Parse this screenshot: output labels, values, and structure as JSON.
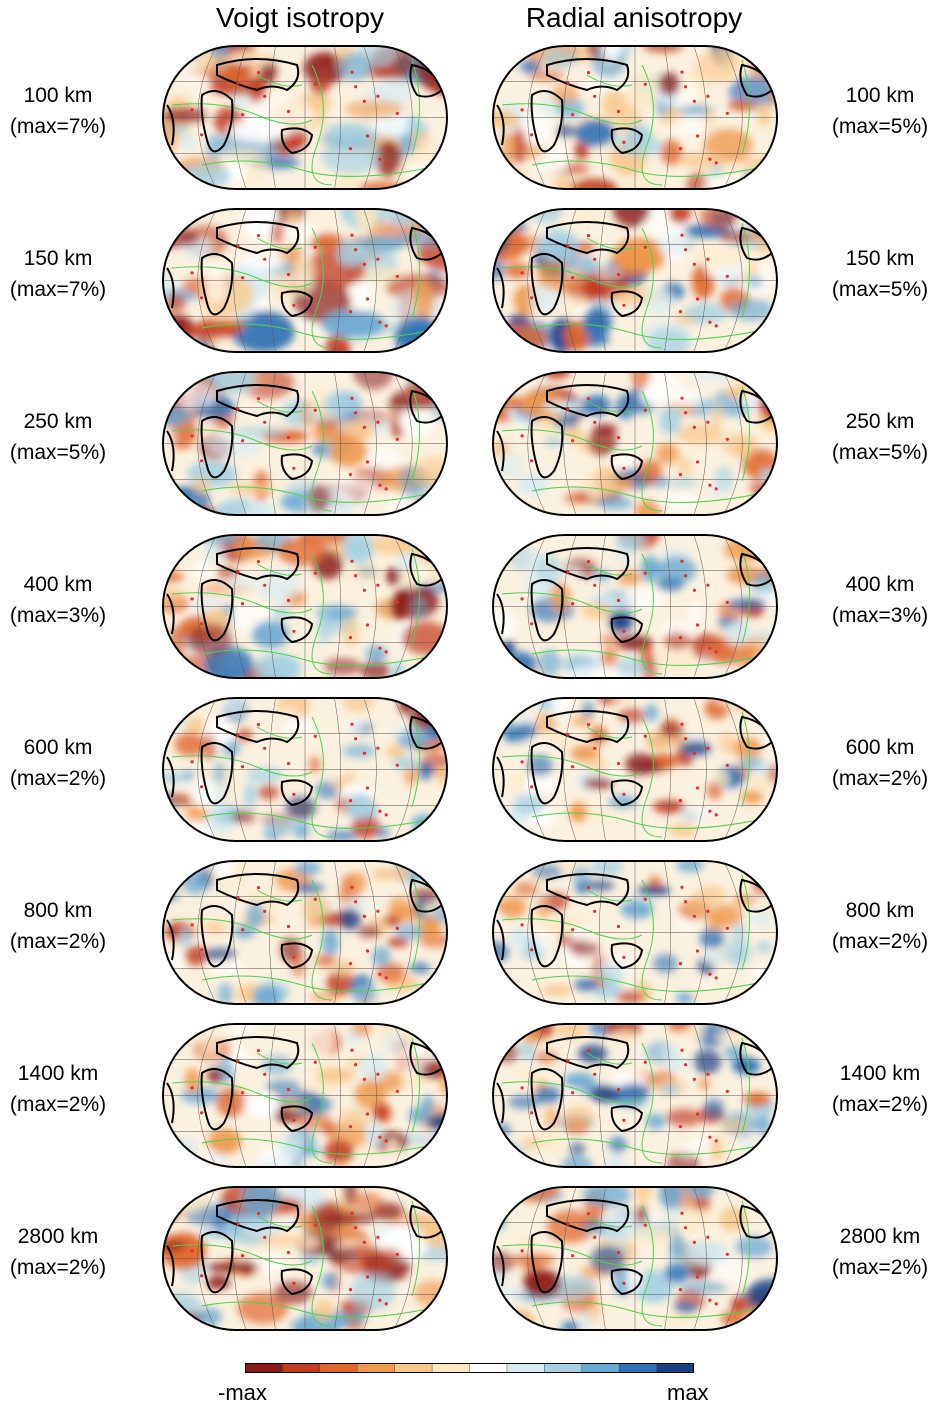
{
  "columns": {
    "left_title": "Voigt isotropy",
    "right_title": "Radial anisotropy"
  },
  "rows": [
    {
      "depth": "100 km",
      "left_max": "(max=7%)",
      "right_max": "(max=5%)"
    },
    {
      "depth": "150 km",
      "left_max": "(max=7%)",
      "right_max": "(max=5%)"
    },
    {
      "depth": "250 km",
      "left_max": "(max=5%)",
      "right_max": "(max=5%)"
    },
    {
      "depth": "400 km",
      "left_max": "(max=3%)",
      "right_max": "(max=3%)"
    },
    {
      "depth": "600 km",
      "left_max": "(max=2%)",
      "right_max": "(max=2%)"
    },
    {
      "depth": "800 km",
      "left_max": "(max=2%)",
      "right_max": "(max=2%)"
    },
    {
      "depth": "1400 km",
      "left_max": "(max=2%)",
      "right_max": "(max=2%)"
    },
    {
      "depth": "2800 km",
      "left_max": "(max=2%)",
      "right_max": "(max=2%)"
    }
  ],
  "colorbar": {
    "min_label": "-max",
    "max_label": "max",
    "colors": [
      "#8b1a1a",
      "#c23b1e",
      "#e0662a",
      "#f09a4e",
      "#f8c88a",
      "#fde9c4",
      "#ffffff",
      "#d9ecf2",
      "#a7d1e2",
      "#6aa9d2",
      "#2f72b5",
      "#1a3f86"
    ]
  },
  "map_colors": {
    "coast": "#000000",
    "plates": "#4ed04e",
    "hotspots": "#e03030",
    "grid": "#555555"
  }
}
